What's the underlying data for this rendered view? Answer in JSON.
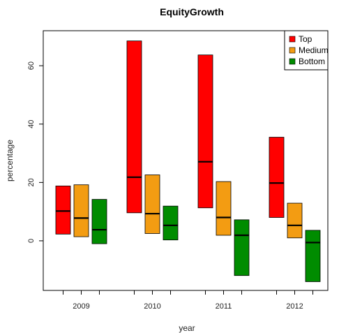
{
  "chart_data": {
    "type": "bar",
    "subtype": "floating-range",
    "title": "EquityGrowth",
    "xlabel": "year",
    "ylabel": "percentage",
    "categories": [
      "2009",
      "2010",
      "2011",
      "2012"
    ],
    "ylim": [
      -17,
      72
    ],
    "yticks": [
      0,
      20,
      40,
      60
    ],
    "grid": false,
    "legend_position": "top-right",
    "series": [
      {
        "name": "Top",
        "color": "#ff0000",
        "low": [
          2.3,
          9.6,
          11.3,
          8.0
        ],
        "high": [
          18.8,
          68.5,
          63.7,
          35.5
        ],
        "median": [
          10.2,
          21.8,
          27.1,
          19.8
        ]
      },
      {
        "name": "Medium",
        "color": "#f39c12",
        "low": [
          1.4,
          2.5,
          1.9,
          1.0
        ],
        "high": [
          19.2,
          22.6,
          20.3,
          12.9
        ],
        "median": [
          7.8,
          9.3,
          8.0,
          5.3
        ]
      },
      {
        "name": "Bottom",
        "color": "#008c00",
        "low": [
          -1.0,
          0.3,
          -11.9,
          -14.0
        ],
        "high": [
          14.2,
          11.9,
          7.2,
          3.6
        ],
        "median": [
          3.8,
          5.3,
          1.9,
          -0.6
        ]
      }
    ]
  }
}
